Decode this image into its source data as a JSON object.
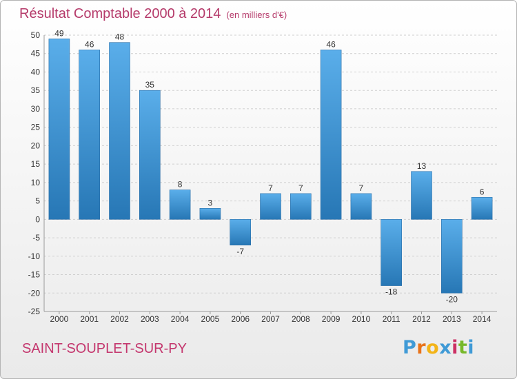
{
  "header": {
    "title": "Résultat Comptable 2000 à 2014",
    "subtitle": "(en milliers d'€)"
  },
  "footer": {
    "town": "SAINT-SOUPLET-SUR-PY",
    "logo_letters": [
      "P",
      "r",
      "o",
      "x",
      "i",
      "t",
      "i"
    ]
  },
  "colors": {
    "title": "#b53a6a",
    "town": "#c4376e",
    "bar_top": "#5aaeea",
    "bar_bottom": "#2777b5",
    "logo": [
      "#3f9ad6",
      "#e8731a",
      "#f3b418",
      "#3f9ad6",
      "#cc2f63",
      "#77b82a",
      "#3f9ad6"
    ]
  },
  "chart_data": {
    "type": "bar",
    "title": "Résultat Comptable 2000 à 2014",
    "subtitle": "(en milliers d'€)",
    "categories": [
      "2000",
      "2001",
      "2002",
      "2003",
      "2004",
      "2005",
      "2006",
      "2007",
      "2008",
      "2009",
      "2010",
      "2011",
      "2012",
      "2013",
      "2014"
    ],
    "values": [
      49,
      46,
      48,
      35,
      8,
      3,
      -7,
      7,
      7,
      46,
      7,
      -18,
      13,
      -20,
      6
    ],
    "ylim": [
      -25,
      50
    ],
    "yticks": [
      50,
      45,
      40,
      35,
      30,
      25,
      20,
      15,
      10,
      5,
      0,
      -5,
      -10,
      -15,
      -20,
      -25
    ],
    "grid": true
  }
}
